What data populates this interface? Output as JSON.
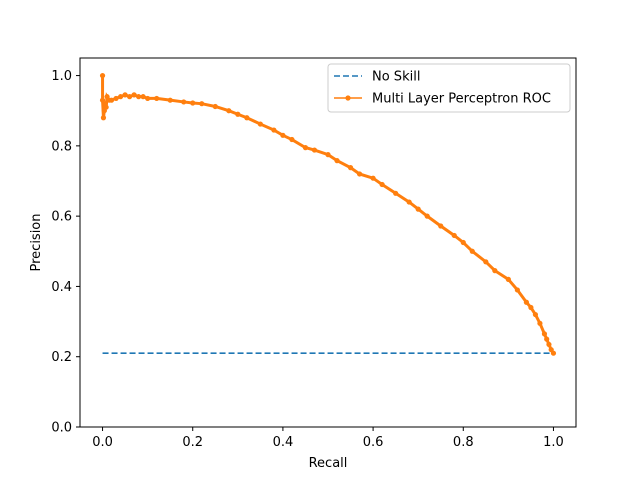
{
  "chart_data": {
    "type": "line",
    "title": "",
    "xlabel": "Recall",
    "ylabel": "Precision",
    "xlim": [
      -0.05,
      1.05
    ],
    "ylim": [
      0.0,
      1.05
    ],
    "xticks": [
      "0.0",
      "0.2",
      "0.4",
      "0.6",
      "0.8",
      "1.0"
    ],
    "yticks": [
      "0.0",
      "0.2",
      "0.4",
      "0.6",
      "0.8",
      "1.0"
    ],
    "grid": false,
    "legend_position": "top-right",
    "series": [
      {
        "name": "No Skill",
        "style": "dashed",
        "color": "#1f77b4",
        "x": [
          0.0,
          1.0
        ],
        "y": [
          0.21,
          0.21
        ]
      },
      {
        "name": "Multi Layer Perceptron ROC",
        "style": "solid-dots",
        "color": "#ff7f0e",
        "x": [
          0.0,
          0.0,
          0.002,
          0.004,
          0.006,
          0.008,
          0.01,
          0.015,
          0.02,
          0.03,
          0.04,
          0.05,
          0.06,
          0.07,
          0.08,
          0.09,
          0.1,
          0.12,
          0.15,
          0.18,
          0.2,
          0.22,
          0.25,
          0.28,
          0.3,
          0.32,
          0.35,
          0.38,
          0.4,
          0.42,
          0.45,
          0.47,
          0.5,
          0.52,
          0.55,
          0.57,
          0.6,
          0.62,
          0.65,
          0.68,
          0.7,
          0.72,
          0.75,
          0.78,
          0.8,
          0.82,
          0.85,
          0.87,
          0.9,
          0.92,
          0.94,
          0.95,
          0.96,
          0.97,
          0.98,
          0.985,
          0.99,
          0.995,
          1.0
        ],
        "y": [
          1.0,
          0.93,
          0.88,
          0.9,
          0.92,
          0.91,
          0.94,
          0.93,
          0.93,
          0.935,
          0.94,
          0.945,
          0.94,
          0.945,
          0.94,
          0.94,
          0.935,
          0.935,
          0.93,
          0.925,
          0.922,
          0.92,
          0.912,
          0.9,
          0.89,
          0.88,
          0.862,
          0.845,
          0.83,
          0.818,
          0.795,
          0.788,
          0.775,
          0.758,
          0.738,
          0.72,
          0.708,
          0.69,
          0.665,
          0.64,
          0.62,
          0.6,
          0.572,
          0.545,
          0.525,
          0.5,
          0.47,
          0.445,
          0.42,
          0.39,
          0.355,
          0.34,
          0.32,
          0.295,
          0.265,
          0.25,
          0.235,
          0.22,
          0.21
        ]
      }
    ]
  }
}
